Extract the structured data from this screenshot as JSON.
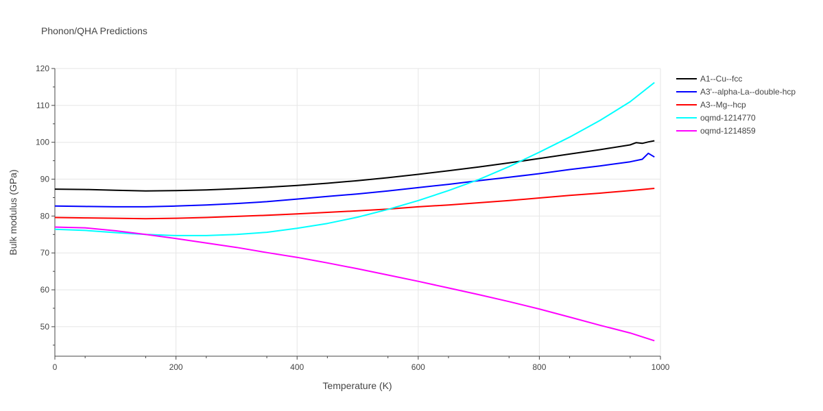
{
  "chart_data": {
    "type": "line",
    "title": "Phonon/QHA Predictions",
    "xlabel": "Temperature (K)",
    "ylabel": "Bulk modulus (GPa)",
    "xlim": [
      0,
      1000
    ],
    "ylim": [
      42,
      120
    ],
    "x_ticks": [
      0,
      200,
      400,
      600,
      800,
      1000
    ],
    "y_ticks": [
      50,
      60,
      70,
      80,
      90,
      100,
      110,
      120
    ],
    "grid": true,
    "legend_position": "right",
    "series": [
      {
        "name": "A1--Cu--fcc",
        "color": "#000000",
        "x": [
          0,
          50,
          100,
          150,
          200,
          250,
          300,
          350,
          400,
          450,
          500,
          550,
          600,
          650,
          700,
          750,
          800,
          850,
          900,
          950,
          960,
          970,
          980,
          990
        ],
        "y": [
          87.3,
          87.2,
          87.0,
          86.8,
          86.9,
          87.1,
          87.4,
          87.8,
          88.3,
          88.9,
          89.6,
          90.4,
          91.3,
          92.3,
          93.3,
          94.4,
          95.6,
          96.8,
          98.0,
          99.3,
          99.9,
          99.7,
          100.1,
          100.4
        ]
      },
      {
        "name": "A3'--alpha-La--double-hcp",
        "color": "#0000ff",
        "x": [
          0,
          50,
          100,
          150,
          200,
          250,
          300,
          350,
          400,
          450,
          500,
          550,
          600,
          650,
          700,
          750,
          800,
          850,
          900,
          950,
          970,
          980,
          990
        ],
        "y": [
          82.7,
          82.6,
          82.5,
          82.5,
          82.7,
          83.0,
          83.4,
          83.9,
          84.6,
          85.3,
          86.0,
          86.8,
          87.7,
          88.6,
          89.6,
          90.5,
          91.5,
          92.6,
          93.6,
          94.7,
          95.4,
          97.0,
          96.0
        ]
      },
      {
        "name": "A3--Mg--hcp",
        "color": "#ff0000",
        "x": [
          0,
          50,
          100,
          150,
          200,
          250,
          300,
          350,
          400,
          450,
          500,
          550,
          600,
          650,
          700,
          750,
          800,
          850,
          900,
          950,
          990
        ],
        "y": [
          79.6,
          79.5,
          79.4,
          79.3,
          79.4,
          79.6,
          79.9,
          80.2,
          80.6,
          81.0,
          81.4,
          81.9,
          82.5,
          83.0,
          83.6,
          84.2,
          84.9,
          85.6,
          86.2,
          86.9,
          87.5
        ]
      },
      {
        "name": "oqmd-1214770",
        "color": "#00ffff",
        "x": [
          0,
          50,
          100,
          150,
          200,
          250,
          300,
          350,
          400,
          450,
          500,
          550,
          600,
          650,
          700,
          750,
          800,
          850,
          900,
          950,
          990
        ],
        "y": [
          76.4,
          76.1,
          75.5,
          75.0,
          74.7,
          74.7,
          75.0,
          75.6,
          76.7,
          78.0,
          79.7,
          81.8,
          84.2,
          86.9,
          89.9,
          93.4,
          97.3,
          101.4,
          105.9,
          111.0,
          116.2
        ]
      },
      {
        "name": "oqmd-1214859",
        "color": "#ff00ff",
        "x": [
          0,
          50,
          100,
          150,
          200,
          250,
          300,
          350,
          400,
          450,
          500,
          550,
          600,
          650,
          700,
          750,
          800,
          850,
          900,
          950,
          990
        ],
        "y": [
          77.0,
          76.8,
          76.0,
          75.0,
          73.9,
          72.7,
          71.5,
          70.1,
          68.8,
          67.3,
          65.7,
          64.0,
          62.3,
          60.5,
          58.7,
          56.8,
          54.8,
          52.6,
          50.4,
          48.3,
          46.2
        ]
      }
    ]
  }
}
